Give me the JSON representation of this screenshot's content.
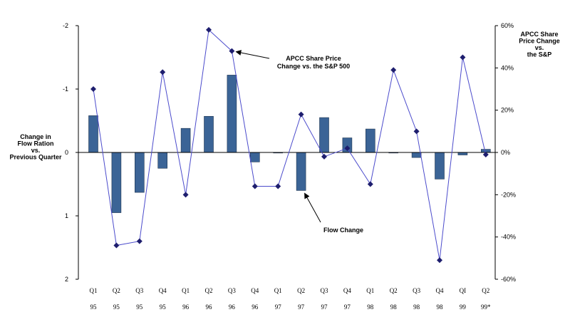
{
  "chart_data": {
    "type": "bar-line",
    "categories": [
      {
        "quarter": "Q1",
        "year": "95"
      },
      {
        "quarter": "Q2",
        "year": "95"
      },
      {
        "quarter": "Q3",
        "year": "95"
      },
      {
        "quarter": "Q4",
        "year": "95"
      },
      {
        "quarter": "Q1",
        "year": "96"
      },
      {
        "quarter": "Q2",
        "year": "96"
      },
      {
        "quarter": "Q3",
        "year": "96"
      },
      {
        "quarter": "Q4",
        "year": "96"
      },
      {
        "quarter": "Q1",
        "year": "97"
      },
      {
        "quarter": "Q2",
        "year": "97"
      },
      {
        "quarter": "Q3",
        "year": "97"
      },
      {
        "quarter": "Q4",
        "year": "97"
      },
      {
        "quarter": "Q1",
        "year": "98"
      },
      {
        "quarter": "Q2",
        "year": "98"
      },
      {
        "quarter": "Q3",
        "year": "98"
      },
      {
        "quarter": "Q4",
        "year": "98"
      },
      {
        "quarter": "QI",
        "year": "99"
      },
      {
        "quarter": "Q2",
        "year": "99*"
      }
    ],
    "series": [
      {
        "name": "Flow Change",
        "kind": "bar",
        "axis": "left",
        "color": "#3B6496",
        "values": [
          -0.58,
          0.95,
          0.63,
          0.25,
          -0.38,
          -0.57,
          -1.22,
          0.15,
          0.0,
          0.6,
          -0.55,
          -0.23,
          -0.37,
          0.0,
          0.08,
          0.42,
          0.04,
          -0.05
        ]
      },
      {
        "name": "APCC Share Price Change vs. the S&P 500",
        "kind": "line",
        "axis": "right",
        "color": "#4B4BCC",
        "marker_color": "#1E1E6E",
        "values": [
          30,
          -44,
          -42,
          38,
          -20,
          58,
          48,
          -16,
          -16,
          18,
          -2,
          2,
          -15,
          39,
          10,
          -51,
          45,
          -1
        ]
      }
    ],
    "left_axis": {
      "label": [
        "Change in",
        "Flow Ration",
        "vs.",
        "Previous Quarter"
      ],
      "inverted": true,
      "range": [
        -2,
        2
      ],
      "ticks": [
        -2,
        -1,
        0,
        1,
        2
      ],
      "tick_labels": [
        "-2",
        "-1",
        "0",
        "1",
        "2"
      ]
    },
    "right_axis": {
      "label": [
        "APCC Share",
        "Price Change",
        "vs.",
        "the S&P"
      ],
      "range": [
        -60,
        60
      ],
      "ticks": [
        60,
        40,
        20,
        0,
        -20,
        -40,
        -60
      ],
      "tick_labels": [
        "60%",
        "40%",
        "20%",
        "0%",
        "-20%",
        "-40%",
        "-60%"
      ]
    },
    "annotations": [
      {
        "id": "price",
        "lines": [
          "APCC Share Price",
          "Change vs. the S&P 500"
        ],
        "points_to_index": 6
      },
      {
        "id": "flow",
        "lines": [
          "Flow Change"
        ],
        "points_to_index": 9
      }
    ],
    "title": "",
    "grid": false,
    "legend": "none"
  }
}
